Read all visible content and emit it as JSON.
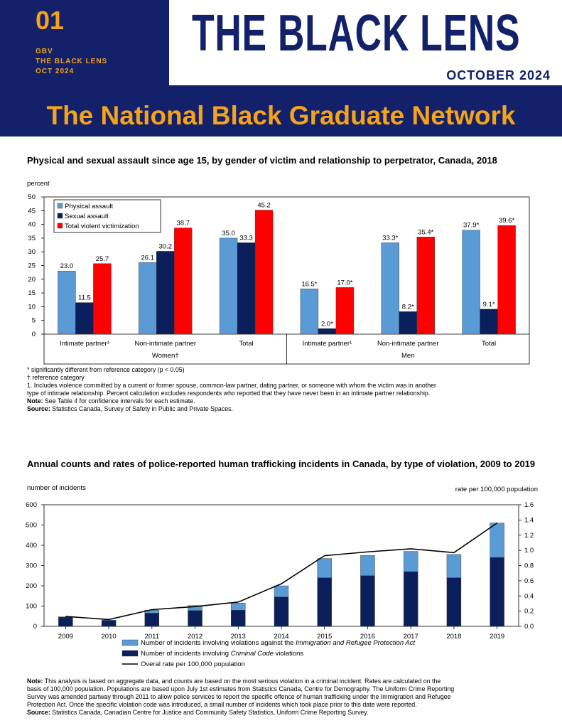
{
  "header": {
    "issue_number": "01",
    "tag_lines": [
      "GBV",
      "THE BLACK LENS",
      "OCT 2024"
    ],
    "title": "THE BLACK LENS",
    "date": "OCTOBER 2024",
    "network": "The National Black Graduate Network"
  },
  "chart1": {
    "title": "Physical and sexual assault since age 15, by gender of victim and relationship  to perpetrator, Canada, 2018",
    "unit_label": "percent",
    "notes": [
      {
        "mark": "",
        "text": "* significantly different from reference category (p < 0.05)"
      },
      {
        "mark": "",
        "text": "† reference category"
      },
      {
        "mark": "",
        "text": "1. Includes violence committed by a current or former spouse, common-law partner, dating partner, or someone with whom the victim was in another"
      },
      {
        "mark": "",
        "text": "type of intimate relationship. Percent calculation excludes respondents who reported that they have never been in an intimate partner relationship."
      },
      {
        "mark": "Note:",
        "text": " See Table 4 for confidence intervals for each estimate."
      },
      {
        "mark": "Source:",
        "text": " Statistics Canada, Survey of Safety in Public and Private Spaces."
      }
    ]
  },
  "chart2": {
    "title": "Annual counts and rates of police-reported  human trafficking  incidents  in Canada, by type of violation,  2009 to 2019",
    "unit_left": "number of incidents",
    "unit_right": "rate per 100,000 population",
    "notes": [
      {
        "mark": "Note:",
        "text": " This analysis is based on aggregate data, and counts are based on the most serious violation in a criminal incident. Rates are calculated on the"
      },
      {
        "mark": "",
        "text": "basis of 100,000 population. Populations are based upon July 1st estimates from Statistics Canada, Centre for Demography. The Uniform Crime Reporting"
      },
      {
        "mark": "",
        "text": "Survey was amended partway through 2011 to allow police services to report the specific offence of human trafficking under the Immigration and Refugee"
      },
      {
        "mark": "",
        "text": "Protection Act. Once the specific violation code was introduced, a small number of incidents which took place prior to this date were reported."
      },
      {
        "mark": "Source:",
        "text": " Statistics Canada, Canadian Centre for Justice and Community Safety Statistics, Uniform Crime Reporting Survey."
      }
    ]
  },
  "chart_data": [
    {
      "type": "bar",
      "title": "Physical and sexual assault since age 15, by gender of victim and relationship  to perpetrator, Canada, 2018",
      "ylabel": "percent",
      "ylim": [
        0,
        50
      ],
      "yticks": [
        0,
        5,
        10,
        15,
        20,
        25,
        30,
        35,
        40,
        45,
        50
      ],
      "groups": [
        "Women†",
        "Men"
      ],
      "categories": [
        "Intimate partner¹",
        "Non-intimate partner",
        "Total",
        "Intimate partner¹",
        "Non-intimate partner",
        "Total"
      ],
      "category_group": [
        0,
        0,
        0,
        1,
        1,
        1
      ],
      "series": [
        {
          "name": "Physical assault",
          "color": "#5b9bd5",
          "values": [
            23.0,
            26.1,
            35.0,
            16.5,
            33.3,
            37.9
          ],
          "labels": [
            "23.0",
            "26.1",
            "35.0",
            "16.5*",
            "33.3*",
            "37.9*"
          ]
        },
        {
          "name": "Sexual assault",
          "color": "#0a1f5c",
          "values": [
            11.5,
            30.2,
            33.3,
            2.0,
            8.2,
            9.1
          ],
          "labels": [
            "11.5",
            "30.2",
            "33.3",
            "2.0*",
            "8.2*",
            "9.1*"
          ]
        },
        {
          "name": "Total violent victimization",
          "color": "#ff0000",
          "values": [
            25.7,
            38.7,
            45.2,
            17.0,
            35.4,
            39.6
          ],
          "labels": [
            "25.7",
            "38.7",
            "45.2",
            "17.0*",
            "35.4*",
            "39.6*"
          ]
        }
      ],
      "legend": "top-left",
      "grid": false
    },
    {
      "type": "bar",
      "stacked": true,
      "title": "Annual counts and rates of police-reported  human trafficking  incidents  in Canada, by type of violation,  2009 to 2019",
      "ylabel": "number of incidents",
      "y2label": "rate per 100,000 population",
      "ylim": [
        0,
        600
      ],
      "yticks": [
        0,
        100,
        200,
        300,
        400,
        500,
        600
      ],
      "y2lim": [
        0,
        1.6
      ],
      "y2ticks": [
        "0.0",
        "0.2",
        "0.4",
        "0.6",
        "0.8",
        "1.0",
        "1.2",
        "1.4",
        "1.6"
      ],
      "categories": [
        "2009",
        "2010",
        "2011",
        "2012",
        "2013",
        "2014",
        "2015",
        "2016",
        "2017",
        "2018",
        "2019"
      ],
      "series": [
        {
          "name": "Number of incidents involving Criminal Code violations",
          "color": "#0a1f5c",
          "values": [
            45,
            30,
            65,
            78,
            80,
            145,
            240,
            250,
            270,
            240,
            340
          ]
        },
        {
          "name": "Number of incidents involving violations against the Immigration and Refugee Protection Act",
          "color": "#5b9bd5",
          "values": [
            2,
            0,
            15,
            25,
            35,
            55,
            95,
            100,
            100,
            115,
            170
          ]
        },
        {
          "name": "Overal rate per 100,000 population",
          "type": "line",
          "axis": "right",
          "color": "#000000",
          "values": [
            0.13,
            0.09,
            0.22,
            0.26,
            0.32,
            0.56,
            0.93,
            0.98,
            1.02,
            0.97,
            1.36
          ]
        }
      ],
      "legend_entries": [
        {
          "pre": "Number of incidents involving violations against the ",
          "em": "Immigration and Refugee Protection Act",
          "post": "",
          "kind": "box",
          "color": "#5b9bd5"
        },
        {
          "pre": "Number of incidents involving ",
          "em": "Criminal Code",
          "post": " violations",
          "kind": "box",
          "color": "#0a1f5c"
        },
        {
          "pre": "Overal rate per 100,000 population",
          "em": "",
          "post": "",
          "kind": "line",
          "color": "#000000"
        }
      ],
      "legend": "bottom",
      "grid": false
    }
  ]
}
